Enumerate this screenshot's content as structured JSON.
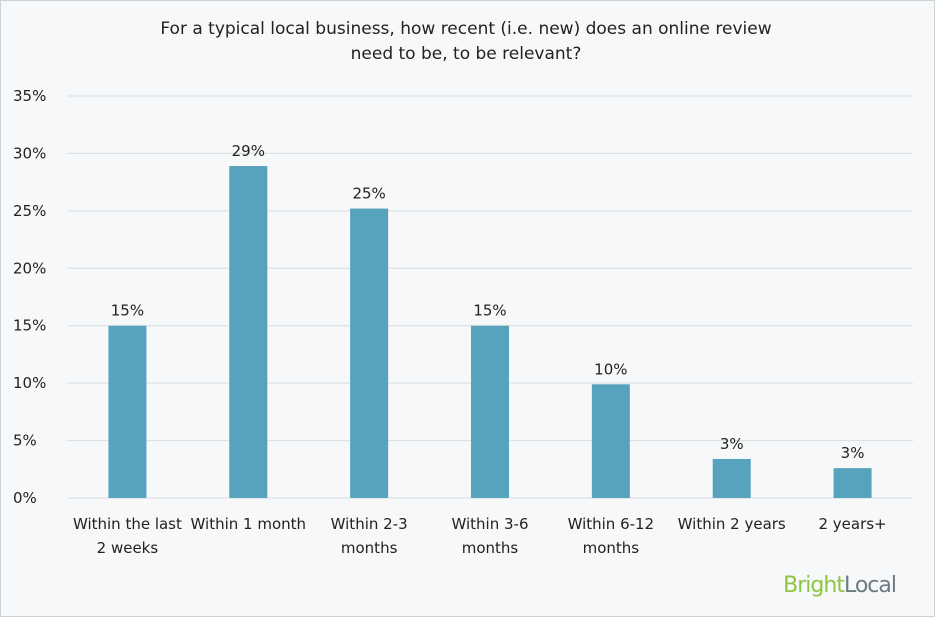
{
  "chart_data": {
    "type": "bar",
    "title": "For a typical local business, how recent (i.e. new) does an online review need to be, to be relevant?",
    "categories": [
      "Within the last 2 weeks",
      "Within 1 month",
      "Within 2-3 months",
      "Within 3-6 months",
      "Within 6-12 months",
      "Within 2 years",
      "2 years+"
    ],
    "values": [
      15,
      28.9,
      25.2,
      15,
      9.9,
      3.4,
      2.6
    ],
    "value_labels": [
      "15%",
      "29%",
      "25%",
      "15%",
      "10%",
      "3%",
      "3%"
    ],
    "color": "#57a2bd",
    "ylim": [
      0,
      35
    ],
    "yticks": [
      {
        "value": 0,
        "label": "0%"
      },
      {
        "value": 5,
        "label": "5%"
      },
      {
        "value": 10,
        "label": "10%"
      },
      {
        "value": 15,
        "label": "15%"
      },
      {
        "value": 20,
        "label": "20%"
      },
      {
        "value": 25,
        "label": "25%"
      },
      {
        "value": 30,
        "label": "30%"
      },
      {
        "value": 35,
        "label": "35%"
      }
    ],
    "grid": true,
    "brand": [
      "Bright",
      "Local"
    ]
  }
}
